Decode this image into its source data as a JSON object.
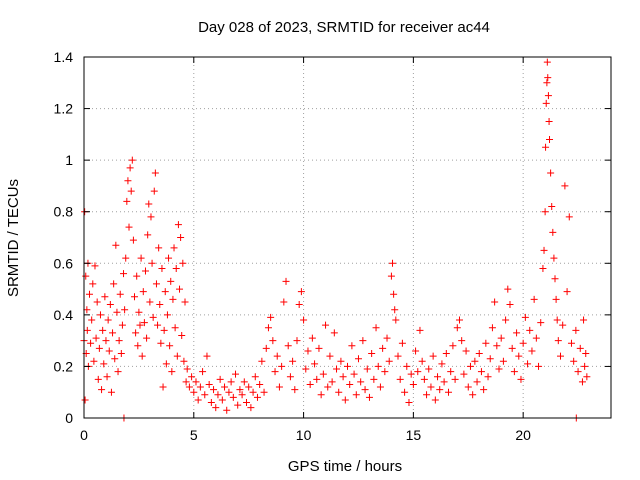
{
  "chart_data": {
    "type": "scatter",
    "title": "Day 028 of 2023, SRMTID for receiver ac44",
    "xlabel": "GPS time / hours",
    "ylabel": "SRMTID / TECUs",
    "xlim": [
      0,
      24
    ],
    "ylim": [
      0,
      1.4
    ],
    "x_ticks": [
      0,
      5,
      10,
      15,
      20
    ],
    "x_tick_labels": [
      "0",
      "5",
      "10",
      "15",
      "20"
    ],
    "y_ticks": [
      0,
      0.2,
      0.4,
      0.6,
      0.8,
      1,
      1.2,
      1.4
    ],
    "y_tick_labels": [
      "0",
      "0.2",
      "0.4",
      "0.6",
      "0.8",
      "1",
      "1.2",
      "1.4"
    ],
    "grid": true,
    "marker": "+",
    "color": "#ff0000",
    "series": [
      {
        "name": "SRMTID",
        "points": [
          [
            0.0,
            0.3
          ],
          [
            0.03,
            0.8
          ],
          [
            0.05,
            0.07
          ],
          [
            0.08,
            0.55
          ],
          [
            0.1,
            0.25
          ],
          [
            0.13,
            0.42
          ],
          [
            0.15,
            0.34
          ],
          [
            0.18,
            0.6
          ],
          [
            0.2,
            0.2
          ],
          [
            0.25,
            0.48
          ],
          [
            0.3,
            0.29
          ],
          [
            0.35,
            0.38
          ],
          [
            0.4,
            0.52
          ],
          [
            0.45,
            0.22
          ],
          [
            0.5,
            0.59
          ],
          [
            0.55,
            0.31
          ],
          [
            0.6,
            0.45
          ],
          [
            0.65,
            0.15
          ],
          [
            0.7,
            0.27
          ],
          [
            0.75,
            0.4
          ],
          [
            0.8,
            0.11
          ],
          [
            0.85,
            0.34
          ],
          [
            0.9,
            0.21
          ],
          [
            0.95,
            0.47
          ],
          [
            1.0,
            0.3
          ],
          [
            1.05,
            0.16
          ],
          [
            1.1,
            0.38
          ],
          [
            1.15,
            0.26
          ],
          [
            1.2,
            0.44
          ],
          [
            1.25,
            0.1
          ],
          [
            1.3,
            0.33
          ],
          [
            1.35,
            0.52
          ],
          [
            1.4,
            0.23
          ],
          [
            1.45,
            0.67
          ],
          [
            1.5,
            0.41
          ],
          [
            1.55,
            0.18
          ],
          [
            1.6,
            0.3
          ],
          [
            1.65,
            0.48
          ],
          [
            1.7,
            0.25
          ],
          [
            1.75,
            0.36
          ],
          [
            1.8,
            0.56
          ],
          [
            1.82,
            0.0
          ],
          [
            1.85,
            0.42
          ],
          [
            1.9,
            0.62
          ],
          [
            1.95,
            0.84
          ],
          [
            2.0,
            0.92
          ],
          [
            2.05,
            0.74
          ],
          [
            2.1,
            0.97
          ],
          [
            2.15,
            0.88
          ],
          [
            2.2,
            1.0
          ],
          [
            2.25,
            0.69
          ],
          [
            2.3,
            0.47
          ],
          [
            2.35,
            0.33
          ],
          [
            2.4,
            0.55
          ],
          [
            2.45,
            0.28
          ],
          [
            2.5,
            0.41
          ],
          [
            2.55,
            0.36
          ],
          [
            2.6,
            0.62
          ],
          [
            2.65,
            0.24
          ],
          [
            2.7,
            0.49
          ],
          [
            2.75,
            0.37
          ],
          [
            2.8,
            0.57
          ],
          [
            2.85,
            0.31
          ],
          [
            2.9,
            0.71
          ],
          [
            2.95,
            0.83
          ],
          [
            3.0,
            0.45
          ],
          [
            3.05,
            0.78
          ],
          [
            3.1,
            0.6
          ],
          [
            3.15,
            0.39
          ],
          [
            3.2,
            0.88
          ],
          [
            3.25,
            0.95
          ],
          [
            3.3,
            0.52
          ],
          [
            3.35,
            0.36
          ],
          [
            3.4,
            0.66
          ],
          [
            3.45,
            0.44
          ],
          [
            3.5,
            0.29
          ],
          [
            3.55,
            0.58
          ],
          [
            3.6,
            0.12
          ],
          [
            3.65,
            0.34
          ],
          [
            3.7,
            0.49
          ],
          [
            3.75,
            0.21
          ],
          [
            3.8,
            0.4
          ],
          [
            3.85,
            0.62
          ],
          [
            3.9,
            0.28
          ],
          [
            3.95,
            0.53
          ],
          [
            4.0,
            0.18
          ],
          [
            4.05,
            0.46
          ],
          [
            4.1,
            0.66
          ],
          [
            4.15,
            0.35
          ],
          [
            4.2,
            0.58
          ],
          [
            4.25,
            0.24
          ],
          [
            4.3,
            0.75
          ],
          [
            4.35,
            0.5
          ],
          [
            4.4,
            0.7
          ],
          [
            4.45,
            0.32
          ],
          [
            4.5,
            0.6
          ],
          [
            4.55,
            0.22
          ],
          [
            4.6,
            0.45
          ],
          [
            4.65,
            0.14
          ],
          [
            4.7,
            0.19
          ],
          [
            4.8,
            0.12
          ],
          [
            4.9,
            0.16
          ],
          [
            5.0,
            0.1
          ],
          [
            5.1,
            0.14
          ],
          [
            5.2,
            0.07
          ],
          [
            5.3,
            0.12
          ],
          [
            5.4,
            0.18
          ],
          [
            5.5,
            0.09
          ],
          [
            5.6,
            0.24
          ],
          [
            5.7,
            0.13
          ],
          [
            5.8,
            0.06
          ],
          [
            5.9,
            0.11
          ],
          [
            6.0,
            0.04
          ],
          [
            6.1,
            0.09
          ],
          [
            6.2,
            0.15
          ],
          [
            6.3,
            0.07
          ],
          [
            6.4,
            0.12
          ],
          [
            6.5,
            0.03
          ],
          [
            6.6,
            0.1
          ],
          [
            6.7,
            0.14
          ],
          [
            6.8,
            0.08
          ],
          [
            6.9,
            0.17
          ],
          [
            7.0,
            0.05
          ],
          [
            7.1,
            0.11
          ],
          [
            7.2,
            0.09
          ],
          [
            7.3,
            0.14
          ],
          [
            7.4,
            0.06
          ],
          [
            7.5,
            0.12
          ],
          [
            7.6,
            0.04
          ],
          [
            7.7,
            0.1
          ],
          [
            7.8,
            0.16
          ],
          [
            7.9,
            0.08
          ],
          [
            8.0,
            0.13
          ],
          [
            8.1,
            0.22
          ],
          [
            8.2,
            0.1
          ],
          [
            8.3,
            0.27
          ],
          [
            8.4,
            0.35
          ],
          [
            8.5,
            0.39
          ],
          [
            8.6,
            0.3
          ],
          [
            8.7,
            0.18
          ],
          [
            8.8,
            0.24
          ],
          [
            8.9,
            0.12
          ],
          [
            9.0,
            0.2
          ],
          [
            9.1,
            0.45
          ],
          [
            9.2,
            0.53
          ],
          [
            9.3,
            0.28
          ],
          [
            9.4,
            0.16
          ],
          [
            9.5,
            0.22
          ],
          [
            9.6,
            0.11
          ],
          [
            9.7,
            0.3
          ],
          [
            9.8,
            0.44
          ],
          [
            9.9,
            0.49
          ],
          [
            10.0,
            0.38
          ],
          [
            10.1,
            0.19
          ],
          [
            10.2,
            0.26
          ],
          [
            10.3,
            0.13
          ],
          [
            10.4,
            0.31
          ],
          [
            10.5,
            0.21
          ],
          [
            10.6,
            0.15
          ],
          [
            10.7,
            0.27
          ],
          [
            10.8,
            0.09
          ],
          [
            10.9,
            0.17
          ],
          [
            11.0,
            0.36
          ],
          [
            11.1,
            0.12
          ],
          [
            11.2,
            0.24
          ],
          [
            11.3,
            0.14
          ],
          [
            11.4,
            0.33
          ],
          [
            11.5,
            0.19
          ],
          [
            11.6,
            0.1
          ],
          [
            11.7,
            0.22
          ],
          [
            11.8,
            0.16
          ],
          [
            11.9,
            0.07
          ],
          [
            12.0,
            0.2
          ],
          [
            12.1,
            0.13
          ],
          [
            12.2,
            0.28
          ],
          [
            12.3,
            0.17
          ],
          [
            12.4,
            0.09
          ],
          [
            12.5,
            0.23
          ],
          [
            12.6,
            0.14
          ],
          [
            12.7,
            0.3
          ],
          [
            12.8,
            0.11
          ],
          [
            12.9,
            0.19
          ],
          [
            13.0,
            0.08
          ],
          [
            13.1,
            0.25
          ],
          [
            13.2,
            0.15
          ],
          [
            13.3,
            0.35
          ],
          [
            13.4,
            0.2
          ],
          [
            13.5,
            0.12
          ],
          [
            13.6,
            0.27
          ],
          [
            13.7,
            0.18
          ],
          [
            13.8,
            0.31
          ],
          [
            13.9,
            0.22
          ],
          [
            14.0,
            0.55
          ],
          [
            14.05,
            0.6
          ],
          [
            14.1,
            0.48
          ],
          [
            14.15,
            0.42
          ],
          [
            14.2,
            0.38
          ],
          [
            14.3,
            0.24
          ],
          [
            14.4,
            0.15
          ],
          [
            14.5,
            0.29
          ],
          [
            14.6,
            0.1
          ],
          [
            14.7,
            0.2
          ],
          [
            14.8,
            0.06
          ],
          [
            14.9,
            0.17
          ],
          [
            15.0,
            0.13
          ],
          [
            15.1,
            0.26
          ],
          [
            15.2,
            0.18
          ],
          [
            15.3,
            0.34
          ],
          [
            15.4,
            0.22
          ],
          [
            15.5,
            0.15
          ],
          [
            15.6,
            0.09
          ],
          [
            15.7,
            0.19
          ],
          [
            15.8,
            0.12
          ],
          [
            15.9,
            0.24
          ],
          [
            16.0,
            0.07
          ],
          [
            16.1,
            0.16
          ],
          [
            16.2,
            0.11
          ],
          [
            16.3,
            0.21
          ],
          [
            16.4,
            0.14
          ],
          [
            16.5,
            0.25
          ],
          [
            16.6,
            0.1
          ],
          [
            16.7,
            0.18
          ],
          [
            16.8,
            0.28
          ],
          [
            16.9,
            0.15
          ],
          [
            17.0,
            0.35
          ],
          [
            17.1,
            0.38
          ],
          [
            17.2,
            0.3
          ],
          [
            17.3,
            0.17
          ],
          [
            17.4,
            0.26
          ],
          [
            17.5,
            0.12
          ],
          [
            17.6,
            0.2
          ],
          [
            17.7,
            0.09
          ],
          [
            17.8,
            0.22
          ],
          [
            17.9,
            0.14
          ],
          [
            18.0,
            0.25
          ],
          [
            18.1,
            0.18
          ],
          [
            18.2,
            0.11
          ],
          [
            18.3,
            0.29
          ],
          [
            18.4,
            0.16
          ],
          [
            18.5,
            0.23
          ],
          [
            18.6,
            0.35
          ],
          [
            18.7,
            0.45
          ],
          [
            18.8,
            0.28
          ],
          [
            18.9,
            0.19
          ],
          [
            19.0,
            0.31
          ],
          [
            19.1,
            0.22
          ],
          [
            19.2,
            0.38
          ],
          [
            19.3,
            0.5
          ],
          [
            19.4,
            0.44
          ],
          [
            19.5,
            0.27
          ],
          [
            19.6,
            0.18
          ],
          [
            19.7,
            0.33
          ],
          [
            19.8,
            0.24
          ],
          [
            19.9,
            0.15
          ],
          [
            20.0,
            0.29
          ],
          [
            20.1,
            0.39
          ],
          [
            20.2,
            0.21
          ],
          [
            20.3,
            0.34
          ],
          [
            20.4,
            0.26
          ],
          [
            20.5,
            0.46
          ],
          [
            20.6,
            0.31
          ],
          [
            20.7,
            0.2
          ],
          [
            20.8,
            0.37
          ],
          [
            20.9,
            0.58
          ],
          [
            20.95,
            0.65
          ],
          [
            21.0,
            0.8
          ],
          [
            21.02,
            1.05
          ],
          [
            21.05,
            1.22
          ],
          [
            21.08,
            1.3
          ],
          [
            21.1,
            1.38
          ],
          [
            21.12,
            1.32
          ],
          [
            21.15,
            1.25
          ],
          [
            21.18,
            1.15
          ],
          [
            21.2,
            1.08
          ],
          [
            21.25,
            0.95
          ],
          [
            21.3,
            0.82
          ],
          [
            21.35,
            0.72
          ],
          [
            21.4,
            0.62
          ],
          [
            21.45,
            0.54
          ],
          [
            21.5,
            0.46
          ],
          [
            21.55,
            0.38
          ],
          [
            21.6,
            0.3
          ],
          [
            21.7,
            0.24
          ],
          [
            21.8,
            0.36
          ],
          [
            21.9,
            0.9
          ],
          [
            22.0,
            0.49
          ],
          [
            22.1,
            0.78
          ],
          [
            22.2,
            0.29
          ],
          [
            22.3,
            0.22
          ],
          [
            22.4,
            0.34
          ],
          [
            22.42,
            0.0
          ],
          [
            22.5,
            0.18
          ],
          [
            22.6,
            0.27
          ],
          [
            22.7,
            0.14
          ],
          [
            22.75,
            0.38
          ],
          [
            22.8,
            0.2
          ],
          [
            22.85,
            0.25
          ],
          [
            22.9,
            0.16
          ]
        ]
      }
    ]
  }
}
